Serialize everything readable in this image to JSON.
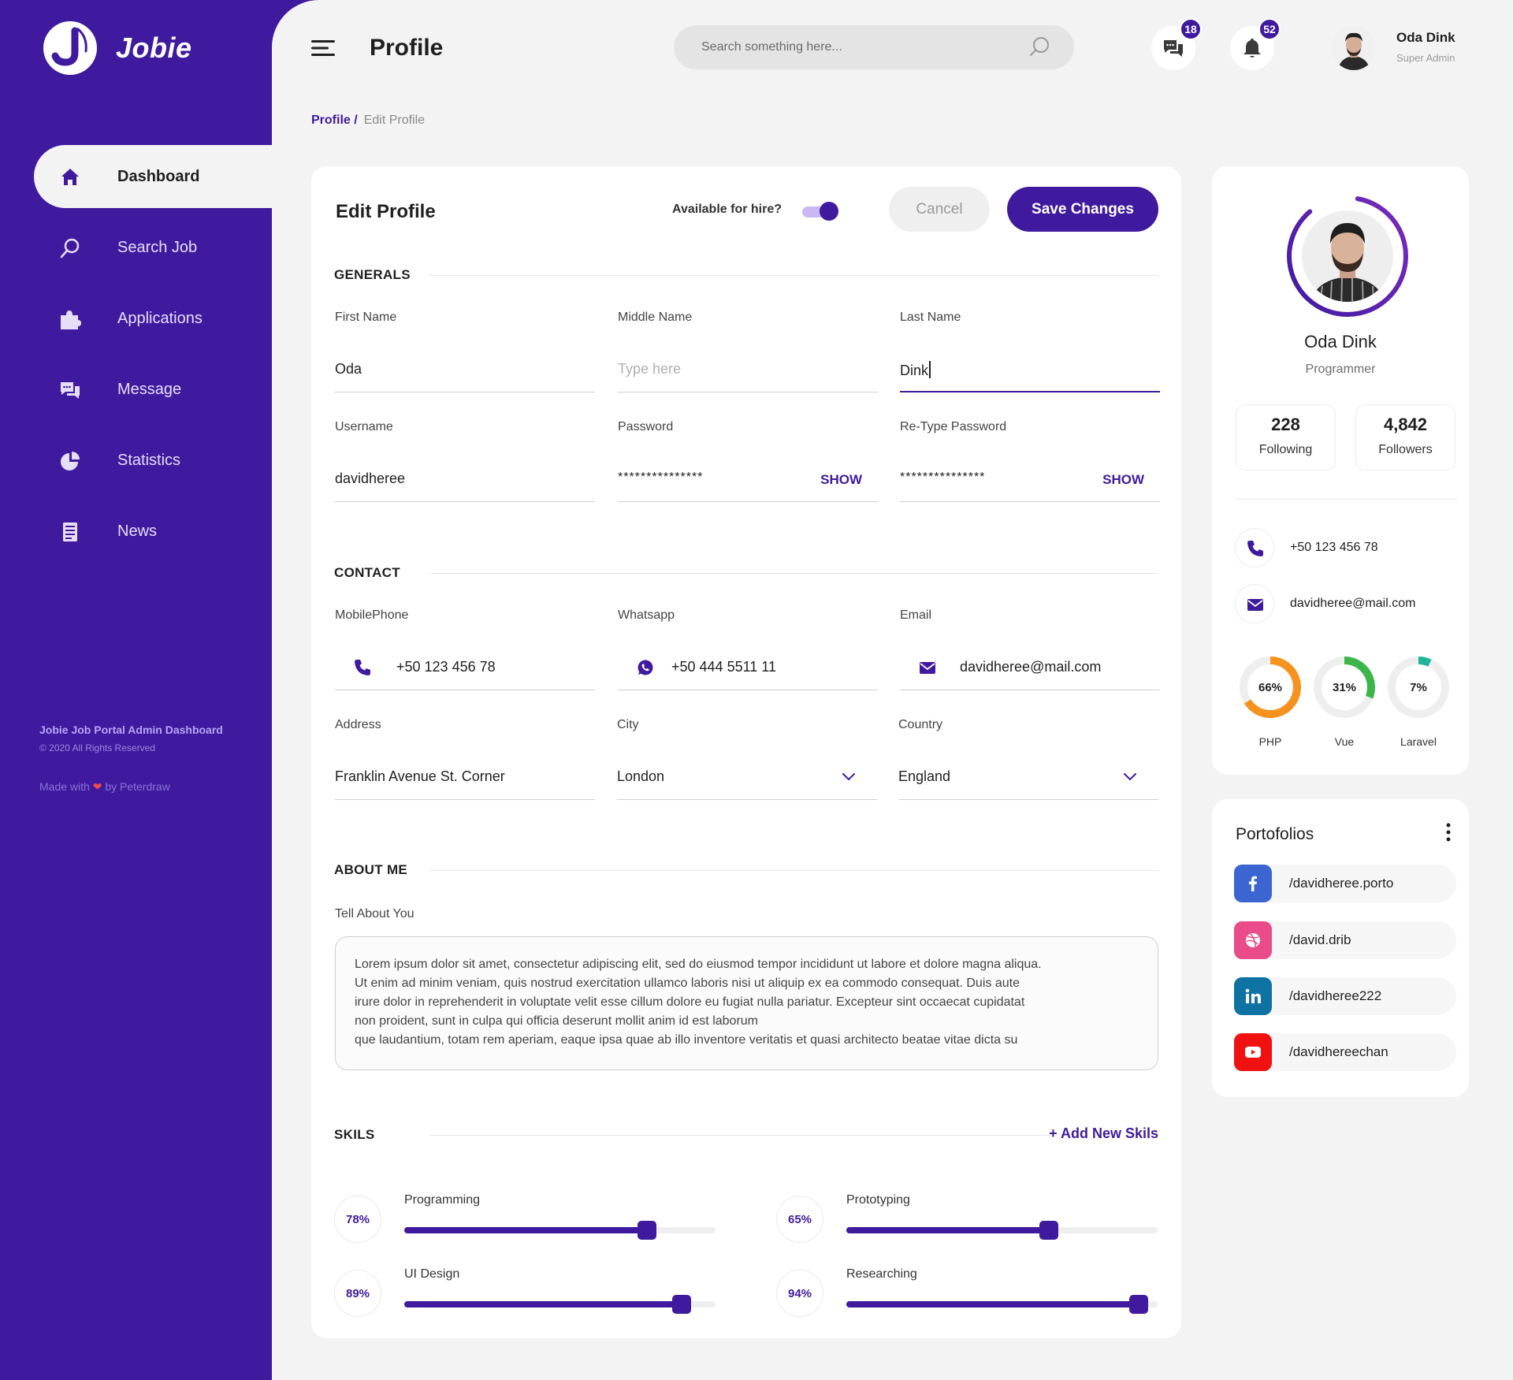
{
  "brand": {
    "name": "Jobie"
  },
  "sidebar": {
    "items": [
      {
        "label": "Dashboard",
        "icon": "home-icon",
        "active": true
      },
      {
        "label": "Search Job",
        "icon": "search-icon"
      },
      {
        "label": "Applications",
        "icon": "puzzle-icon"
      },
      {
        "label": "Message",
        "icon": "chat-icon"
      },
      {
        "label": "Statistics",
        "icon": "pie-chart-icon"
      },
      {
        "label": "News",
        "icon": "news-icon"
      }
    ],
    "footer": {
      "title": "Jobie Job Portal Admin Dashboard",
      "copyright": "© 2020 All Rights Reserved",
      "made_with_prefix": "Made with",
      "made_with_suffix": "by Peterdraw"
    }
  },
  "header": {
    "title": "Profile",
    "search_placeholder": "Search something here...",
    "messages_count": "18",
    "notifications_count": "52",
    "user_name": "Oda Dink",
    "user_role": "Super Admin"
  },
  "breadcrumb": {
    "parent": "Profile /",
    "current": "Edit Profile"
  },
  "edit_profile": {
    "title": "Edit Profile",
    "available_label": "Available for hire?",
    "available": true,
    "cancel_label": "Cancel",
    "save_label": "Save Changes",
    "sections": {
      "generals": "GENERALS",
      "contact": "CONTACT",
      "about": "ABOUT ME",
      "skills": "SKILS"
    },
    "fields": {
      "first_name": {
        "label": "First Name",
        "value": "Oda"
      },
      "middle_name": {
        "label": "Middle Name",
        "placeholder": "Type here"
      },
      "last_name": {
        "label": "Last Name",
        "value": "Dink"
      },
      "username": {
        "label": "Username",
        "value": "davidheree"
      },
      "password": {
        "label": "Password",
        "value": "***************",
        "show_label": "SHOW"
      },
      "retype_password": {
        "label": "Re-Type Password",
        "value": "***************",
        "show_label": "SHOW"
      },
      "mobile": {
        "label": "MobilePhone",
        "value": "+50 123 456 78"
      },
      "whatsapp": {
        "label": "Whatsapp",
        "value": "+50 444 5511 11"
      },
      "email": {
        "label": "Email",
        "value": "davidheree@mail.com"
      },
      "address": {
        "label": "Address",
        "value": "Franklin Avenue St. Corner"
      },
      "city": {
        "label": "City",
        "value": "London"
      },
      "country": {
        "label": "Country",
        "value": "England"
      }
    },
    "about": {
      "label": "Tell About You",
      "lines": [
        "Lorem ipsum dolor sit amet, consectetur adipiscing elit, sed do eiusmod tempor incididunt ut labore et dolore magna aliqua.",
        "Ut enim ad minim veniam, quis nostrud exercitation ullamco laboris nisi ut aliquip ex ea commodo consequat. Duis aute",
        "irure dolor in reprehenderit in voluptate velit esse cillum dolore eu fugiat nulla pariatur. Excepteur sint occaecat cupidatat",
        "non proident, sunt in culpa qui officia deserunt mollit anim id est laborum",
        "que laudantium, totam rem aperiam, eaque ipsa quae ab illo inventore veritatis et quasi architecto beatae vitae dicta su"
      ]
    },
    "add_skill_label": "+ Add New Skils",
    "skills": [
      {
        "name": "Programming",
        "percent": 78,
        "label": "78%"
      },
      {
        "name": "Prototyping",
        "percent": 65,
        "label": "65%"
      },
      {
        "name": "UI Design",
        "percent": 89,
        "label": "89%"
      },
      {
        "name": "Researching",
        "percent": 94,
        "label": "94%"
      }
    ]
  },
  "profile_card": {
    "name": "Oda Dink",
    "role": "Programmer",
    "following_count": "228",
    "following_label": "Following",
    "followers_count": "4,842",
    "followers_label": "Followers",
    "phone": "+50 123 456 78",
    "email": "davidheree@mail.com",
    "languages": [
      {
        "name": "PHP",
        "percent": 66,
        "label": "66%",
        "color": "#f7921e"
      },
      {
        "name": "Vue",
        "percent": 31,
        "label": "31%",
        "color": "#3cb54a"
      },
      {
        "name": "Laravel",
        "percent": 7,
        "label": "7%",
        "color": "#1fb59b"
      }
    ]
  },
  "portfolios": {
    "title": "Portofolios",
    "items": [
      {
        "label": "/davidheree.porto",
        "icon": "facebook-icon",
        "color": "#3b66d1"
      },
      {
        "label": "/david.drib",
        "icon": "dribbble-icon",
        "color": "#ea4c89"
      },
      {
        "label": "/davidheree222",
        "icon": "linkedin-icon",
        "color": "#0e72a3"
      },
      {
        "label": "/davidhereechan",
        "icon": "youtube-icon",
        "color": "#f01111"
      }
    ]
  },
  "colors": {
    "primary": "#3f1a9e",
    "background": "#f3f3f3"
  }
}
